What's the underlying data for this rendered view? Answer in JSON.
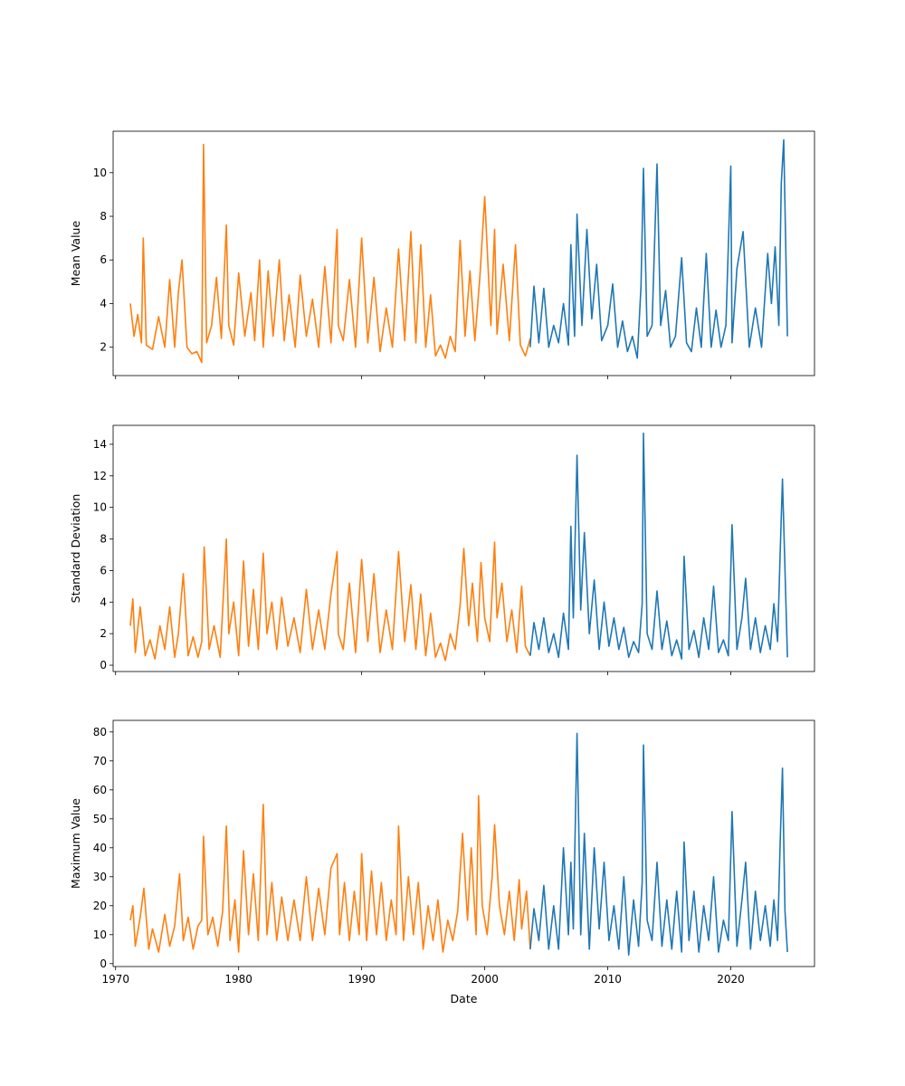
{
  "chart_data": [
    {
      "type": "line",
      "ylabel": "Mean Value",
      "xlabel": "",
      "x_ticks": [
        1970,
        1980,
        1990,
        2000,
        2010,
        2020
      ],
      "x_tick_labels_visible": false,
      "xlim": [
        1969.8,
        2026.8
      ],
      "ylim": [
        0.7,
        11.9
      ],
      "y_ticks": [
        2,
        4,
        6,
        8,
        10
      ],
      "grid": false,
      "series": [
        {
          "color": "#ff7f0e",
          "x": [
            1971.2,
            1971.5,
            1971.8,
            1972.1,
            1972.25,
            1972.5,
            1973.0,
            1973.5,
            1974.0,
            1974.4,
            1974.8,
            1975.1,
            1975.4,
            1975.8,
            1976.2,
            1976.6,
            1977.0,
            1977.15,
            1977.4,
            1977.8,
            1978.2,
            1978.6,
            1979.0,
            1979.2,
            1979.6,
            1980.0,
            1980.5,
            1981.0,
            1981.3,
            1981.7,
            1982.0,
            1982.4,
            1982.8,
            1983.3,
            1983.7,
            1984.1,
            1984.6,
            1985.0,
            1985.5,
            1986.0,
            1986.5,
            1987.0,
            1987.5,
            1988.0,
            1988.1,
            1988.5,
            1989.0,
            1989.5,
            1990.0,
            1990.5,
            1991.0,
            1991.5,
            1992.0,
            1992.5,
            1993.0,
            1993.5,
            1994.0,
            1994.4,
            1994.8,
            1995.2,
            1995.6,
            1996.0,
            1996.4,
            1996.8,
            1997.2,
            1997.6,
            1998.0,
            1998.4,
            1998.8,
            1999.2,
            1999.6,
            2000.0,
            2000.5,
            2000.8,
            2001.0,
            2001.5,
            2002.0,
            2002.5,
            2002.9,
            2003.3,
            2003.7
          ],
          "values": [
            4.0,
            2.5,
            3.5,
            2.2,
            7.0,
            2.1,
            1.9,
            3.4,
            2.0,
            5.1,
            2.0,
            4.5,
            6.0,
            2.0,
            1.7,
            1.8,
            1.3,
            11.3,
            2.2,
            3.0,
            5.2,
            2.4,
            7.6,
            3.0,
            2.1,
            5.4,
            2.5,
            4.5,
            2.3,
            6.0,
            2.0,
            5.5,
            2.5,
            6.0,
            2.3,
            4.4,
            2.0,
            5.3,
            2.5,
            4.2,
            2.0,
            5.7,
            2.2,
            7.4,
            3.0,
            2.3,
            5.1,
            2.0,
            7.0,
            2.2,
            5.2,
            1.8,
            3.8,
            2.0,
            6.5,
            2.3,
            7.3,
            2.2,
            6.7,
            2.0,
            4.4,
            1.6,
            2.1,
            1.5,
            2.5,
            1.8,
            6.9,
            2.5,
            5.5,
            2.3,
            5.2,
            8.9,
            3.0,
            7.4,
            2.6,
            5.8,
            2.3,
            6.7,
            2.1,
            1.6,
            2.4
          ]
        },
        {
          "color": "#1f77b4",
          "x": [
            2003.7,
            2004.0,
            2004.4,
            2004.8,
            2005.2,
            2005.6,
            2006.0,
            2006.4,
            2006.8,
            2007.0,
            2007.3,
            2007.5,
            2007.9,
            2008.3,
            2008.7,
            2009.1,
            2009.5,
            2010.0,
            2010.4,
            2010.8,
            2011.2,
            2011.6,
            2012.0,
            2012.4,
            2012.7,
            2012.9,
            2013.2,
            2013.6,
            2014.0,
            2014.3,
            2014.7,
            2015.1,
            2015.5,
            2016.0,
            2016.4,
            2016.8,
            2017.2,
            2017.6,
            2018.0,
            2018.4,
            2018.8,
            2019.2,
            2019.6,
            2020.0,
            2020.1,
            2020.5,
            2021.0,
            2021.5,
            2022.0,
            2022.5,
            2023.0,
            2023.3,
            2023.6,
            2023.9,
            2024.1,
            2024.3,
            2024.6
          ],
          "values": [
            2.0,
            4.8,
            2.2,
            4.7,
            2.0,
            3.0,
            2.2,
            4.0,
            2.1,
            6.7,
            2.5,
            8.1,
            3.0,
            7.4,
            3.3,
            5.8,
            2.3,
            3.0,
            4.9,
            2.0,
            3.2,
            1.8,
            2.5,
            1.5,
            4.8,
            10.2,
            2.5,
            3.0,
            10.4,
            3.0,
            4.6,
            2.0,
            2.5,
            6.1,
            2.2,
            1.8,
            3.8,
            2.0,
            6.3,
            2.0,
            3.7,
            2.0,
            3.0,
            10.3,
            2.2,
            5.6,
            7.3,
            2.0,
            3.8,
            2.0,
            6.3,
            4.0,
            6.6,
            3.0,
            9.5,
            11.5,
            2.5
          ]
        }
      ]
    },
    {
      "type": "line",
      "ylabel": "Standard Deviation",
      "xlabel": "",
      "x_ticks": [
        1970,
        1980,
        1990,
        2000,
        2010,
        2020
      ],
      "x_tick_labels_visible": false,
      "xlim": [
        1969.8,
        2026.8
      ],
      "ylim": [
        -0.4,
        15.2
      ],
      "y_ticks": [
        0,
        2,
        4,
        6,
        8,
        10,
        12,
        14
      ],
      "grid": false,
      "series": [
        {
          "color": "#ff7f0e",
          "x": [
            1971.2,
            1971.4,
            1971.6,
            1972.0,
            1972.4,
            1972.8,
            1973.2,
            1973.6,
            1974.0,
            1974.4,
            1974.8,
            1975.1,
            1975.5,
            1975.9,
            1976.3,
            1976.7,
            1977.0,
            1977.2,
            1977.6,
            1978.0,
            1978.5,
            1979.0,
            1979.2,
            1979.6,
            1980.0,
            1980.4,
            1980.8,
            1981.2,
            1981.6,
            1982.0,
            1982.3,
            1982.7,
            1983.1,
            1983.5,
            1984.0,
            1984.5,
            1985.0,
            1985.5,
            1986.0,
            1986.5,
            1987.0,
            1987.5,
            1988.0,
            1988.1,
            1988.5,
            1989.0,
            1989.5,
            1990.0,
            1990.5,
            1991.0,
            1991.5,
            1992.0,
            1992.5,
            1993.0,
            1993.5,
            1994.0,
            1994.4,
            1994.8,
            1995.2,
            1995.6,
            1996.0,
            1996.4,
            1996.8,
            1997.2,
            1997.6,
            1998.0,
            1998.3,
            1998.7,
            1999.0,
            1999.4,
            1999.7,
            2000.0,
            2000.4,
            2000.8,
            2001.0,
            2001.4,
            2001.8,
            2002.2,
            2002.6,
            2003.0,
            2003.3,
            2003.7
          ],
          "values": [
            2.5,
            4.2,
            0.8,
            3.7,
            0.6,
            1.6,
            0.4,
            2.5,
            1.0,
            3.7,
            0.5,
            2.0,
            5.8,
            0.6,
            1.8,
            0.5,
            1.5,
            7.5,
            1.0,
            2.5,
            0.5,
            8.0,
            2.0,
            4.0,
            0.6,
            6.6,
            1.2,
            4.8,
            1.0,
            7.1,
            2.0,
            4.0,
            1.0,
            4.3,
            1.2,
            3.0,
            0.8,
            4.8,
            1.0,
            3.5,
            1.0,
            4.5,
            7.2,
            2.0,
            1.0,
            5.2,
            0.8,
            6.7,
            1.5,
            5.8,
            0.8,
            3.5,
            1.0,
            7.2,
            1.5,
            5.1,
            1.0,
            4.5,
            0.6,
            3.3,
            0.5,
            1.4,
            0.3,
            2.0,
            1.0,
            3.8,
            7.4,
            2.5,
            5.2,
            1.5,
            6.5,
            3.0,
            1.5,
            7.8,
            3.0,
            5.2,
            1.5,
            3.5,
            0.8,
            5.0,
            1.2,
            0.6
          ]
        },
        {
          "color": "#1f77b4",
          "x": [
            2003.7,
            2004.0,
            2004.4,
            2004.8,
            2005.2,
            2005.6,
            2006.0,
            2006.4,
            2006.8,
            2007.0,
            2007.2,
            2007.5,
            2007.8,
            2008.1,
            2008.5,
            2008.9,
            2009.3,
            2009.7,
            2010.1,
            2010.5,
            2010.9,
            2011.3,
            2011.7,
            2012.1,
            2012.5,
            2012.8,
            2012.9,
            2013.2,
            2013.6,
            2014.0,
            2014.4,
            2014.8,
            2015.2,
            2015.6,
            2016.0,
            2016.2,
            2016.6,
            2017.0,
            2017.4,
            2017.8,
            2018.2,
            2018.6,
            2019.0,
            2019.4,
            2019.8,
            2020.1,
            2020.5,
            2020.9,
            2021.2,
            2021.6,
            2022.0,
            2022.4,
            2022.8,
            2023.2,
            2023.5,
            2023.8,
            2024.0,
            2024.2,
            2024.6
          ],
          "values": [
            0.6,
            2.7,
            1.0,
            3.0,
            0.8,
            2.0,
            0.5,
            3.3,
            1.0,
            8.8,
            3.0,
            13.3,
            3.5,
            8.4,
            2.0,
            5.4,
            1.0,
            4.0,
            1.2,
            3.0,
            1.0,
            2.4,
            0.5,
            1.5,
            0.8,
            3.9,
            14.7,
            2.0,
            1.0,
            4.7,
            1.0,
            2.8,
            0.6,
            1.6,
            0.4,
            6.9,
            1.0,
            2.2,
            0.5,
            3.0,
            1.0,
            5.0,
            0.8,
            1.6,
            0.6,
            8.9,
            1.0,
            3.0,
            5.5,
            1.0,
            3.0,
            0.8,
            2.5,
            1.0,
            3.9,
            1.5,
            6.8,
            11.8,
            0.5
          ]
        }
      ]
    },
    {
      "type": "line",
      "ylabel": "Maximum Value",
      "xlabel": "Date",
      "x_ticks": [
        1970,
        1980,
        1990,
        2000,
        2010,
        2020
      ],
      "x_tick_labels_visible": true,
      "xlim": [
        1969.8,
        2026.8
      ],
      "ylim": [
        -1,
        84
      ],
      "y_ticks": [
        0,
        10,
        20,
        30,
        40,
        50,
        60,
        70,
        80
      ],
      "grid": false,
      "series": [
        {
          "color": "#ff7f0e",
          "x": [
            1971.2,
            1971.4,
            1971.6,
            1972.0,
            1972.3,
            1972.7,
            1973.0,
            1973.5,
            1974.0,
            1974.4,
            1974.8,
            1975.2,
            1975.5,
            1975.9,
            1976.3,
            1976.7,
            1977.0,
            1977.15,
            1977.5,
            1977.9,
            1978.3,
            1978.7,
            1979.0,
            1979.3,
            1979.7,
            1980.0,
            1980.4,
            1980.8,
            1981.2,
            1981.6,
            1982.0,
            1982.3,
            1982.7,
            1983.1,
            1983.5,
            1984.0,
            1984.5,
            1985.0,
            1985.5,
            1986.0,
            1986.5,
            1987.0,
            1987.5,
            1988.0,
            1988.2,
            1988.6,
            1989.0,
            1989.4,
            1989.8,
            1990.0,
            1990.4,
            1990.8,
            1991.2,
            1991.6,
            1992.0,
            1992.4,
            1992.8,
            1993.0,
            1993.4,
            1993.8,
            1994.2,
            1994.6,
            1995.0,
            1995.4,
            1995.8,
            1996.2,
            1996.6,
            1997.0,
            1997.4,
            1997.8,
            1998.2,
            1998.6,
            1998.9,
            1999.3,
            1999.5,
            1999.8,
            2000.2,
            2000.6,
            2000.8,
            2001.2,
            2001.6,
            2002.0,
            2002.4,
            2002.8,
            2003.0,
            2003.4,
            2003.7
          ],
          "values": [
            15.0,
            20.0,
            6.0,
            16.0,
            26.0,
            5.0,
            12.0,
            4.0,
            17.0,
            6.0,
            13.0,
            31.0,
            8.0,
            16.0,
            5.0,
            13.0,
            15.0,
            44.0,
            10.0,
            16.0,
            6.0,
            18.0,
            47.5,
            8.0,
            22.0,
            4.0,
            39.0,
            10.0,
            31.0,
            8.0,
            55.0,
            10.0,
            28.0,
            8.0,
            23.0,
            8.0,
            22.0,
            8.0,
            30.0,
            8.0,
            26.0,
            10.0,
            33.0,
            38.0,
            10.0,
            28.0,
            8.0,
            25.0,
            10.0,
            38.0,
            8.0,
            32.0,
            10.0,
            28.0,
            8.0,
            22.0,
            10.0,
            47.5,
            8.0,
            30.0,
            10.0,
            28.0,
            5.0,
            20.0,
            8.0,
            22.0,
            4.0,
            15.0,
            8.0,
            18.0,
            45.0,
            15.0,
            40.0,
            10.0,
            58.0,
            20.0,
            10.0,
            30.0,
            48.0,
            20.0,
            10.0,
            25.0,
            8.0,
            29.0,
            12.0,
            25.0,
            5.0
          ]
        },
        {
          "color": "#1f77b4",
          "x": [
            2003.7,
            2004.0,
            2004.4,
            2004.8,
            2005.2,
            2005.6,
            2006.0,
            2006.4,
            2006.8,
            2007.0,
            2007.2,
            2007.5,
            2007.8,
            2008.1,
            2008.5,
            2008.9,
            2009.3,
            2009.7,
            2010.1,
            2010.5,
            2010.9,
            2011.3,
            2011.7,
            2012.1,
            2012.5,
            2012.8,
            2012.9,
            2013.2,
            2013.6,
            2014.0,
            2014.4,
            2014.8,
            2015.2,
            2015.6,
            2016.0,
            2016.2,
            2016.6,
            2017.0,
            2017.4,
            2017.8,
            2018.2,
            2018.6,
            2019.0,
            2019.4,
            2019.8,
            2020.1,
            2020.5,
            2020.9,
            2021.2,
            2021.6,
            2022.0,
            2022.4,
            2022.8,
            2023.2,
            2023.5,
            2023.8,
            2024.0,
            2024.2,
            2024.4,
            2024.6
          ],
          "values": [
            5.0,
            19.0,
            8.0,
            27.0,
            5.0,
            20.0,
            5.0,
            40.0,
            10.0,
            35.0,
            12.0,
            79.5,
            10.0,
            45.0,
            5.0,
            40.0,
            12.0,
            35.0,
            8.0,
            20.0,
            5.0,
            30.0,
            3.0,
            22.0,
            6.0,
            28.0,
            75.5,
            15.0,
            8.0,
            35.0,
            6.0,
            22.0,
            5.0,
            25.0,
            4.0,
            42.0,
            8.0,
            25.0,
            4.0,
            20.0,
            8.0,
            30.0,
            4.0,
            15.0,
            8.0,
            52.5,
            6.0,
            22.0,
            35.0,
            5.0,
            25.0,
            8.0,
            20.0,
            6.0,
            22.0,
            8.0,
            40.0,
            67.5,
            18.0,
            4.0
          ]
        }
      ]
    }
  ]
}
